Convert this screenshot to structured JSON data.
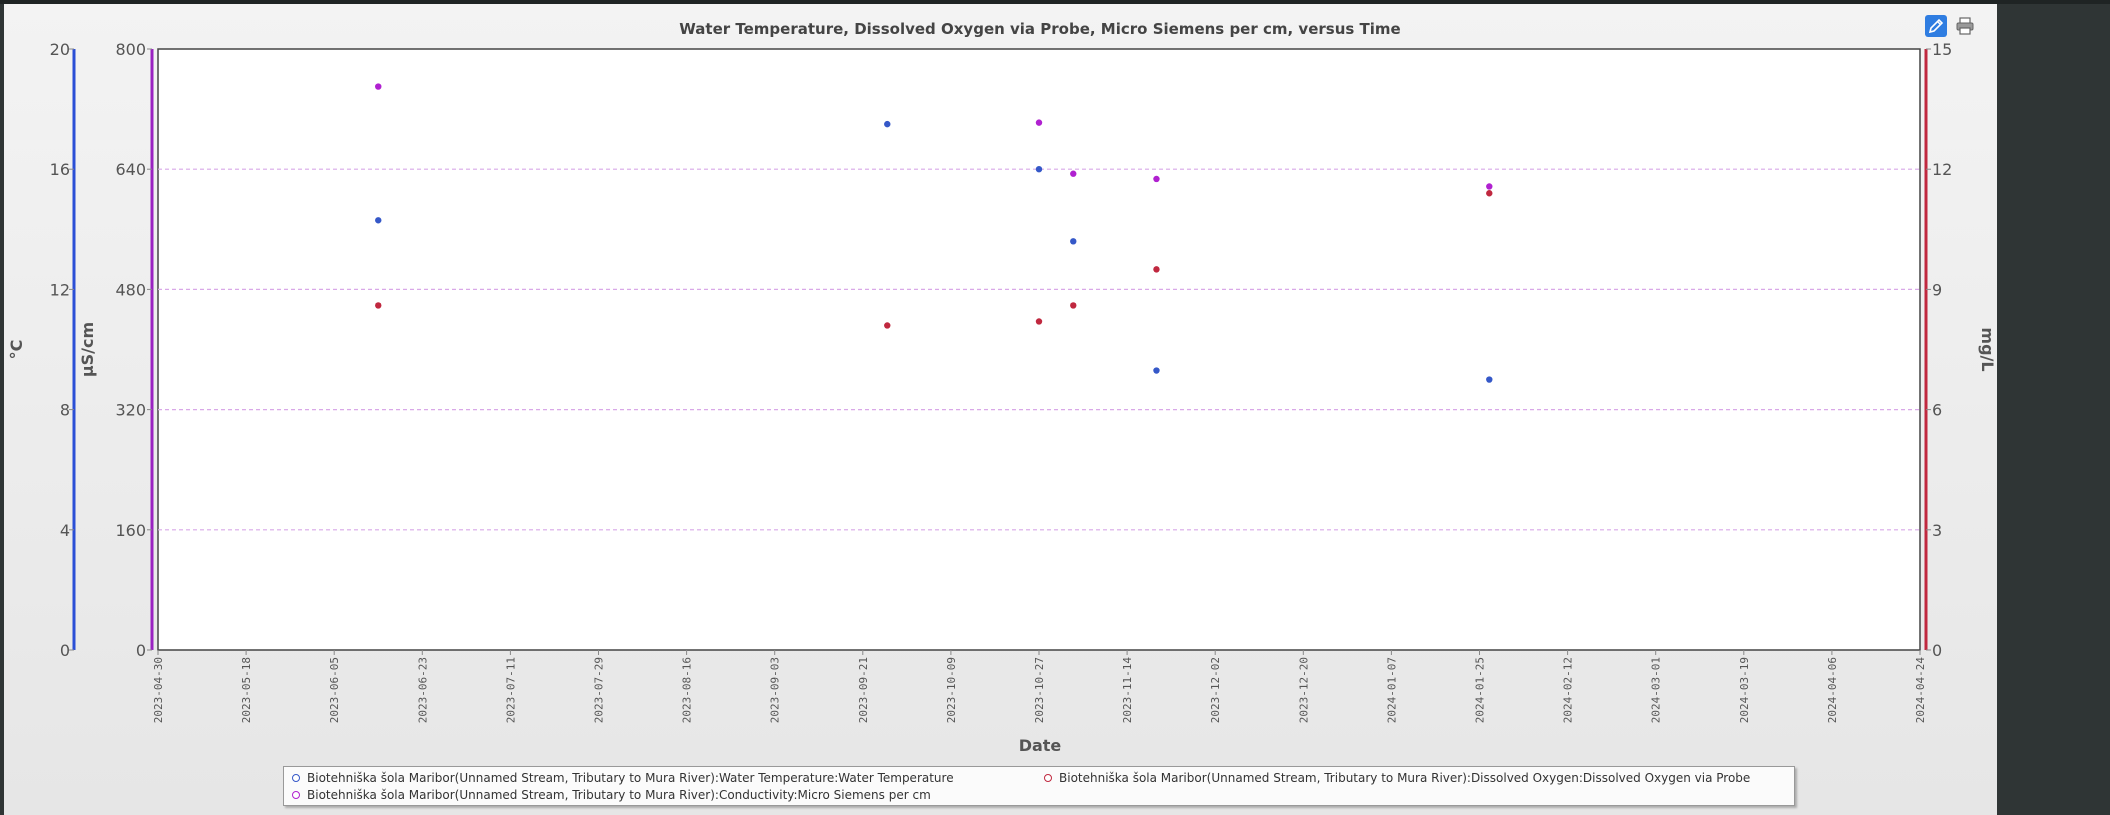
{
  "toolbar": {
    "edit_icon": "pencil-icon",
    "print_icon": "printer-icon"
  },
  "chart_data": {
    "type": "scatter",
    "title": "Water Temperature, Dissolved Oxygen via Probe, Micro Siemens per cm, versus Time",
    "xlabel": "Date",
    "x_ticks": [
      "2023-04-30",
      "2023-05-18",
      "2023-06-05",
      "2023-06-23",
      "2023-07-11",
      "2023-07-29",
      "2023-08-16",
      "2023-09-03",
      "2023-09-21",
      "2023-10-09",
      "2023-10-27",
      "2023-11-14",
      "2023-12-02",
      "2023-12-20",
      "2024-01-07",
      "2024-01-25",
      "2024-02-12",
      "2024-03-01",
      "2024-03-19",
      "2024-04-06",
      "2024-04-24"
    ],
    "xlim": [
      "2023-04-30",
      "2024-04-24"
    ],
    "y_axes": [
      {
        "id": "temp",
        "label": "°C",
        "side": "left-outer",
        "ticks": [
          "0",
          "4",
          "8",
          "12",
          "16",
          "20"
        ],
        "range": [
          0,
          20
        ],
        "color": "#2b4fd6"
      },
      {
        "id": "cond",
        "label": "µS/cm",
        "side": "left-inner",
        "ticks": [
          "0",
          "160",
          "320",
          "480",
          "640",
          "800"
        ],
        "range": [
          0,
          800
        ],
        "color": "#9a22c2"
      },
      {
        "id": "do",
        "label": "mg/L",
        "side": "right",
        "ticks": [
          "0",
          "3",
          "6",
          "9",
          "12",
          "15"
        ],
        "range": [
          0,
          15
        ],
        "color": "#c0283f"
      }
    ],
    "grid": true,
    "legend_position": "bottom",
    "series": [
      {
        "name": "Biotehniška šola Maribor(Unnamed Stream, Tributary to Mura River):Water Temperature:Water Temperature",
        "axis": "temp",
        "color": "#3558c8",
        "points": [
          {
            "x": "2023-06-14",
            "y": 14.3
          },
          {
            "x": "2023-09-26",
            "y": 17.5
          },
          {
            "x": "2023-10-27",
            "y": 16.0
          },
          {
            "x": "2023-11-03",
            "y": 13.6
          },
          {
            "x": "2023-11-20",
            "y": 9.3
          },
          {
            "x": "2024-01-27",
            "y": 9.0
          }
        ]
      },
      {
        "name": "Biotehniška šola Maribor(Unnamed Stream, Tributary to Mura River):Dissolved Oxygen:Dissolved Oxygen via Probe",
        "axis": "do",
        "color": "#c0283f",
        "points": [
          {
            "x": "2023-06-14",
            "y": 8.6
          },
          {
            "x": "2023-09-26",
            "y": 8.1
          },
          {
            "x": "2023-10-27",
            "y": 8.2
          },
          {
            "x": "2023-11-03",
            "y": 8.6
          },
          {
            "x": "2023-11-20",
            "y": 9.5
          },
          {
            "x": "2024-01-27",
            "y": 11.4
          }
        ]
      },
      {
        "name": "Biotehniška šola Maribor(Unnamed Stream, Tributary to Mura River):Conductivity:Micro Siemens per cm",
        "axis": "cond",
        "color": "#b021d0",
        "points": [
          {
            "x": "2023-06-14",
            "y": 750
          },
          {
            "x": "2023-10-27",
            "y": 702
          },
          {
            "x": "2023-11-03",
            "y": 634
          },
          {
            "x": "2023-11-20",
            "y": 627
          },
          {
            "x": "2024-01-27",
            "y": 617
          }
        ]
      }
    ]
  }
}
